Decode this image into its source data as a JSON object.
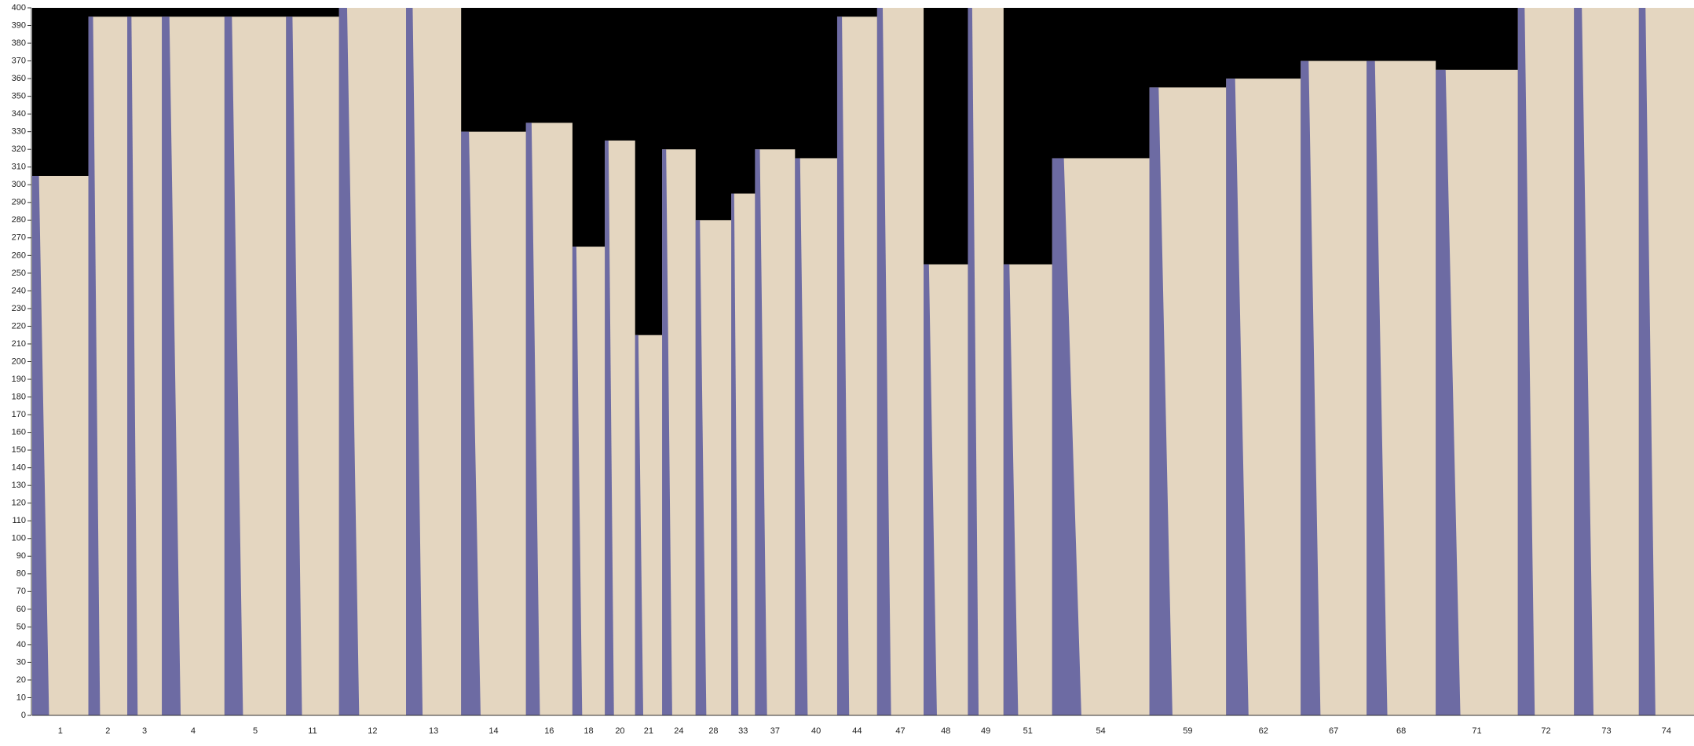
{
  "chart_data": {
    "type": "bar",
    "categories": [
      "1",
      "2",
      "3",
      "4",
      "5",
      "11",
      "12",
      "13",
      "14",
      "16",
      "18",
      "20",
      "21",
      "24",
      "28",
      "33",
      "37",
      "40",
      "44",
      "47",
      "48",
      "49",
      "51",
      "54",
      "59",
      "62",
      "67",
      "68",
      "71",
      "72",
      "73",
      "74"
    ],
    "values": [
      305,
      395,
      395,
      395,
      395,
      395,
      400,
      400,
      330,
      335,
      265,
      325,
      215,
      320,
      280,
      295,
      320,
      315,
      395,
      400,
      255,
      400,
      255,
      315,
      355,
      360,
      370,
      370,
      365,
      400,
      400,
      400
    ],
    "color": "#e4d6c0",
    "edge_color": "#5f5fa0",
    "background": "#000000",
    "ylim": [
      0,
      400
    ],
    "yticks": [
      0,
      10,
      20,
      30,
      40,
      50,
      60,
      70,
      80,
      90,
      100,
      110,
      120,
      130,
      140,
      150,
      160,
      170,
      180,
      190,
      200,
      210,
      220,
      230,
      240,
      250,
      260,
      270,
      280,
      290,
      300,
      310,
      320,
      330,
      340,
      350,
      360,
      370,
      380,
      390,
      400
    ]
  }
}
